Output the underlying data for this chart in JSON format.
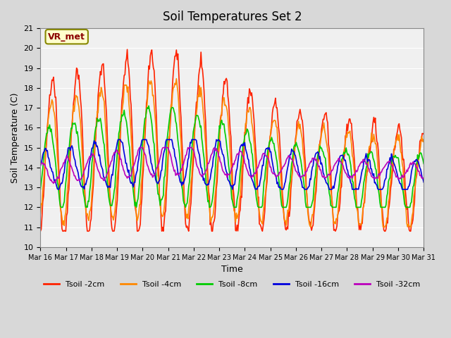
{
  "title": "Soil Temperatures Set 2",
  "xlabel": "Time",
  "ylabel": "Soil Temperature (C)",
  "ylim": [
    10.0,
    21.0
  ],
  "yticks": [
    10.0,
    11.0,
    12.0,
    13.0,
    14.0,
    15.0,
    16.0,
    17.0,
    18.0,
    19.0,
    20.0,
    21.0
  ],
  "xtick_labels": [
    "Mar 16",
    "Mar 17",
    "Mar 18",
    "Mar 19",
    "Mar 20",
    "Mar 21",
    "Mar 22",
    "Mar 23",
    "Mar 24",
    "Mar 25",
    "Mar 26",
    "Mar 27",
    "Mar 28",
    "Mar 29",
    "Mar 30",
    "Mar 31"
  ],
  "legend_label": "VR_met",
  "series": [
    {
      "label": "Tsoil -2cm",
      "color": "#FF2200"
    },
    {
      "label": "Tsoil -4cm",
      "color": "#FF8800"
    },
    {
      "label": "Tsoil -8cm",
      "color": "#00CC00"
    },
    {
      "label": "Tsoil -16cm",
      "color": "#0000DD"
    },
    {
      "label": "Tsoil -32cm",
      "color": "#BB00BB"
    }
  ],
  "bg_color": "#E8E8E8",
  "plot_bg_color": "#F0F0F0"
}
